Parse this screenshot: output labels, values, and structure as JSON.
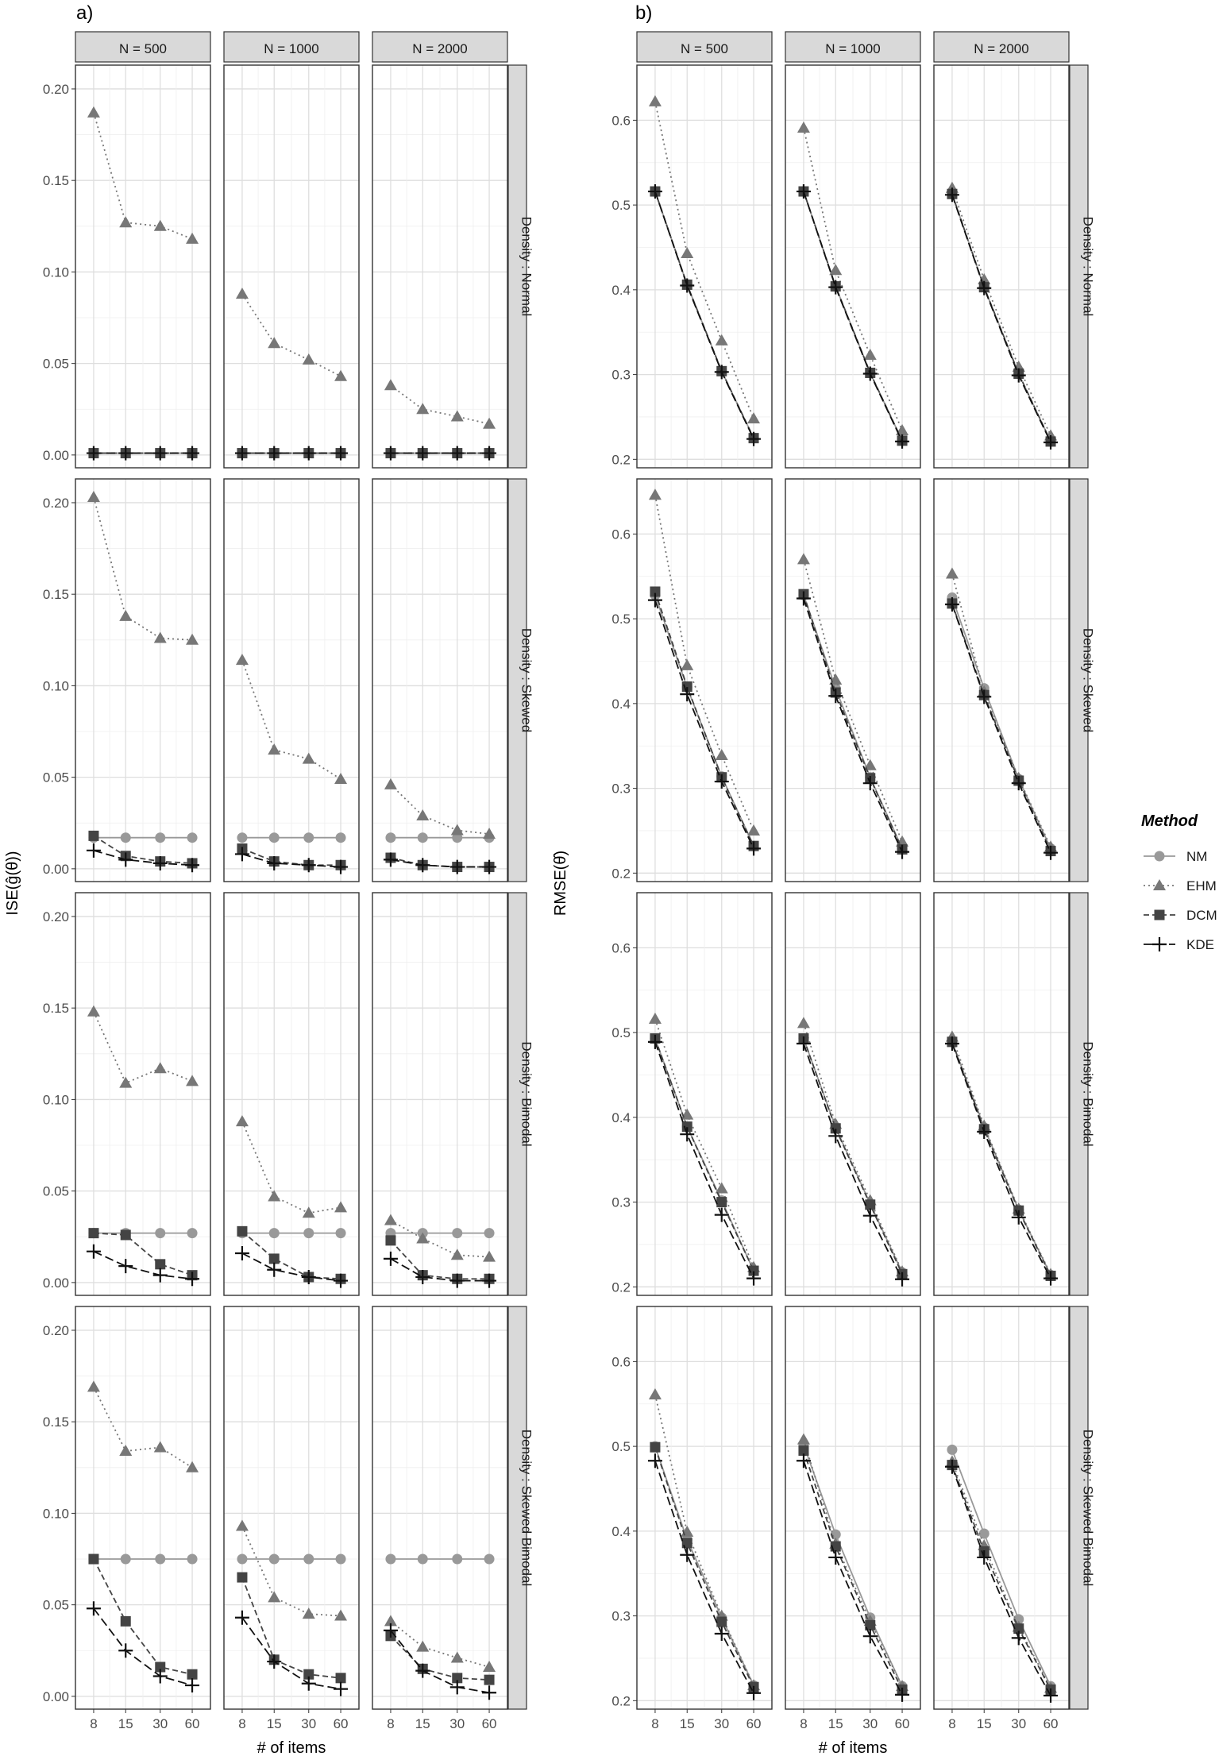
{
  "figure": {
    "panel_labels": [
      "a)",
      "b)"
    ],
    "xlabel": "# of items",
    "x_ticks": [
      8,
      15,
      30,
      60
    ],
    "columns": [
      "N = 500",
      "N = 1000",
      "N = 2000"
    ],
    "rows": [
      "Density : Normal",
      "Density : Skewed",
      "Density : Bimodal",
      "Density : Skewed Bimodal"
    ],
    "legend": {
      "title": "Method",
      "items": [
        {
          "name": "NM",
          "color": "#999999",
          "shape": "circle",
          "dash": "solid"
        },
        {
          "name": "EHM",
          "color": "#777777",
          "shape": "triangle",
          "dash": "dotted"
        },
        {
          "name": "DCM",
          "color": "#444444",
          "shape": "square",
          "dash": "dashed"
        },
        {
          "name": "KDE",
          "color": "#111111",
          "shape": "plus",
          "dash": "longdash"
        }
      ],
      "placement": "right"
    }
  },
  "chart_data": [
    {
      "type": "line",
      "panel": "a)",
      "ylabel": "ISE(ĝ(θ))",
      "ylim": [
        -0.007,
        0.213
      ],
      "y_ticks": [
        0.0,
        0.05,
        0.1,
        0.15,
        0.2
      ],
      "y_tick_labels": [
        "0.00",
        "0.05",
        "0.10",
        "0.15",
        "0.20"
      ],
      "x": [
        8,
        15,
        30,
        60
      ],
      "cells": [
        [
          {
            "NM": [
              0.001,
              0.001,
              0.001,
              0.001
            ],
            "EHM": [
              0.187,
              0.127,
              0.125,
              0.118
            ],
            "DCM": [
              0.001,
              0.001,
              0.001,
              0.001
            ],
            "KDE": [
              0.001,
              0.001,
              0.001,
              0.001
            ]
          },
          {
            "NM": [
              0.001,
              0.001,
              0.001,
              0.001
            ],
            "EHM": [
              0.088,
              0.061,
              0.052,
              0.043
            ],
            "DCM": [
              0.001,
              0.001,
              0.001,
              0.001
            ],
            "KDE": [
              0.001,
              0.001,
              0.001,
              0.001
            ]
          },
          {
            "NM": [
              0.001,
              0.001,
              0.001,
              0.001
            ],
            "EHM": [
              0.038,
              0.025,
              0.021,
              0.017
            ],
            "DCM": [
              0.001,
              0.001,
              0.001,
              0.001
            ],
            "KDE": [
              0.001,
              0.001,
              0.001,
              0.001
            ]
          }
        ],
        [
          {
            "NM": [
              0.017,
              0.017,
              0.017,
              0.017
            ],
            "EHM": [
              0.203,
              0.138,
              0.126,
              0.125
            ],
            "DCM": [
              0.018,
              0.007,
              0.004,
              0.003
            ],
            "KDE": [
              0.01,
              0.005,
              0.003,
              0.002
            ]
          },
          {
            "NM": [
              0.017,
              0.017,
              0.017,
              0.017
            ],
            "EHM": [
              0.114,
              0.065,
              0.06,
              0.049
            ],
            "DCM": [
              0.011,
              0.004,
              0.002,
              0.002
            ],
            "KDE": [
              0.008,
              0.003,
              0.002,
              0.001
            ]
          },
          {
            "NM": [
              0.017,
              0.017,
              0.017,
              0.017
            ],
            "EHM": [
              0.046,
              0.029,
              0.021,
              0.019
            ],
            "DCM": [
              0.006,
              0.002,
              0.001,
              0.001
            ],
            "KDE": [
              0.005,
              0.002,
              0.001,
              0.001
            ]
          }
        ],
        [
          {
            "NM": [
              0.027,
              0.027,
              0.027,
              0.027
            ],
            "EHM": [
              0.148,
              0.109,
              0.117,
              0.11
            ],
            "DCM": [
              0.027,
              0.026,
              0.01,
              0.004
            ],
            "KDE": [
              0.017,
              0.009,
              0.004,
              0.002
            ]
          },
          {
            "NM": [
              0.027,
              0.027,
              0.027,
              0.027
            ],
            "EHM": [
              0.088,
              0.047,
              0.038,
              0.041
            ],
            "DCM": [
              0.028,
              0.013,
              0.003,
              0.002
            ],
            "KDE": [
              0.016,
              0.007,
              0.003,
              0.001
            ]
          },
          {
            "NM": [
              0.027,
              0.027,
              0.027,
              0.027
            ],
            "EHM": [
              0.034,
              0.024,
              0.015,
              0.014
            ],
            "DCM": [
              0.023,
              0.004,
              0.002,
              0.002
            ],
            "KDE": [
              0.013,
              0.003,
              0.001,
              0.001
            ]
          }
        ],
        [
          {
            "NM": [
              0.075,
              0.075,
              0.075,
              0.075
            ],
            "EHM": [
              0.169,
              0.134,
              0.136,
              0.125
            ],
            "DCM": [
              0.075,
              0.041,
              0.016,
              0.012
            ],
            "KDE": [
              0.048,
              0.025,
              0.011,
              0.006
            ]
          },
          {
            "NM": [
              0.075,
              0.075,
              0.075,
              0.075
            ],
            "EHM": [
              0.093,
              0.054,
              0.045,
              0.044
            ],
            "DCM": [
              0.065,
              0.02,
              0.012,
              0.01
            ],
            "KDE": [
              0.043,
              0.019,
              0.007,
              0.004
            ]
          },
          {
            "NM": [
              0.075,
              0.075,
              0.075,
              0.075
            ],
            "EHM": [
              0.041,
              0.027,
              0.021,
              0.016
            ],
            "DCM": [
              0.033,
              0.015,
              0.01,
              0.009
            ],
            "KDE": [
              0.036,
              0.014,
              0.005,
              0.002
            ]
          }
        ]
      ]
    },
    {
      "type": "line",
      "panel": "b)",
      "ylabel": "RMSE(θ̂)",
      "ylim": [
        0.19,
        0.665
      ],
      "y_ticks": [
        0.2,
        0.3,
        0.4,
        0.5,
        0.6
      ],
      "y_tick_labels": [
        "0.2",
        "0.3",
        "0.4",
        "0.5",
        "0.6"
      ],
      "x": [
        8,
        15,
        30,
        60
      ],
      "cells": [
        [
          {
            "NM": [
              0.516,
              0.406,
              0.304,
              0.225
            ],
            "EHM": [
              0.622,
              0.443,
              0.34,
              0.248
            ],
            "DCM": [
              0.516,
              0.406,
              0.304,
              0.225
            ],
            "KDE": [
              0.516,
              0.405,
              0.303,
              0.224
            ]
          },
          {
            "NM": [
              0.516,
              0.404,
              0.302,
              0.222
            ],
            "EHM": [
              0.591,
              0.423,
              0.323,
              0.234
            ],
            "DCM": [
              0.516,
              0.404,
              0.302,
              0.222
            ],
            "KDE": [
              0.516,
              0.403,
              0.301,
              0.221
            ]
          },
          {
            "NM": [
              0.513,
              0.403,
              0.301,
              0.221
            ],
            "EHM": [
              0.52,
              0.412,
              0.309,
              0.228
            ],
            "DCM": [
              0.513,
              0.403,
              0.301,
              0.221
            ],
            "KDE": [
              0.512,
              0.402,
              0.299,
              0.22
            ]
          }
        ],
        [
          {
            "NM": [
              0.528,
              0.419,
              0.314,
              0.232
            ],
            "EHM": [
              0.646,
              0.445,
              0.339,
              0.25
            ],
            "DCM": [
              0.532,
              0.42,
              0.313,
              0.232
            ],
            "KDE": [
              0.522,
              0.411,
              0.308,
              0.229
            ]
          },
          {
            "NM": [
              0.528,
              0.418,
              0.313,
              0.229
            ],
            "EHM": [
              0.57,
              0.428,
              0.327,
              0.237
            ],
            "DCM": [
              0.529,
              0.413,
              0.312,
              0.228
            ],
            "KDE": [
              0.524,
              0.409,
              0.306,
              0.225
            ]
          },
          {
            "NM": [
              0.525,
              0.418,
              0.311,
              0.229
            ],
            "EHM": [
              0.553,
              0.414,
              0.312,
              0.231
            ],
            "DCM": [
              0.518,
              0.41,
              0.309,
              0.226
            ],
            "KDE": [
              0.517,
              0.408,
              0.306,
              0.224
            ]
          }
        ],
        [
          {
            "NM": [
              0.493,
              0.389,
              0.302,
              0.219
            ],
            "EHM": [
              0.516,
              0.403,
              0.316,
              0.223
            ],
            "DCM": [
              0.493,
              0.389,
              0.3,
              0.219
            ],
            "KDE": [
              0.489,
              0.38,
              0.285,
              0.21
            ]
          },
          {
            "NM": [
              0.493,
              0.388,
              0.298,
              0.217
            ],
            "EHM": [
              0.511,
              0.392,
              0.302,
              0.218
            ],
            "DCM": [
              0.493,
              0.387,
              0.297,
              0.215
            ],
            "KDE": [
              0.487,
              0.378,
              0.284,
              0.209
            ]
          },
          {
            "NM": [
              0.489,
              0.388,
              0.291,
              0.214
            ],
            "EHM": [
              0.495,
              0.39,
              0.292,
              0.215
            ],
            "DCM": [
              0.489,
              0.386,
              0.29,
              0.213
            ],
            "KDE": [
              0.487,
              0.383,
              0.282,
              0.21
            ]
          }
        ],
        [
          {
            "NM": [
              0.5,
              0.39,
              0.298,
              0.218
            ],
            "EHM": [
              0.561,
              0.399,
              0.3,
              0.218
            ],
            "DCM": [
              0.499,
              0.386,
              0.293,
              0.216
            ],
            "KDE": [
              0.483,
              0.372,
              0.279,
              0.209
            ]
          },
          {
            "NM": [
              0.502,
              0.396,
              0.298,
              0.217
            ],
            "EHM": [
              0.508,
              0.385,
              0.294,
              0.217
            ],
            "DCM": [
              0.495,
              0.382,
              0.289,
              0.213
            ],
            "KDE": [
              0.483,
              0.369,
              0.276,
              0.207
            ]
          },
          {
            "NM": [
              0.496,
              0.397,
              0.296,
              0.217
            ],
            "EHM": [
              0.482,
              0.383,
              0.287,
              0.215
            ],
            "DCM": [
              0.478,
              0.376,
              0.285,
              0.213
            ],
            "KDE": [
              0.476,
              0.369,
              0.274,
              0.206
            ]
          }
        ]
      ]
    }
  ]
}
